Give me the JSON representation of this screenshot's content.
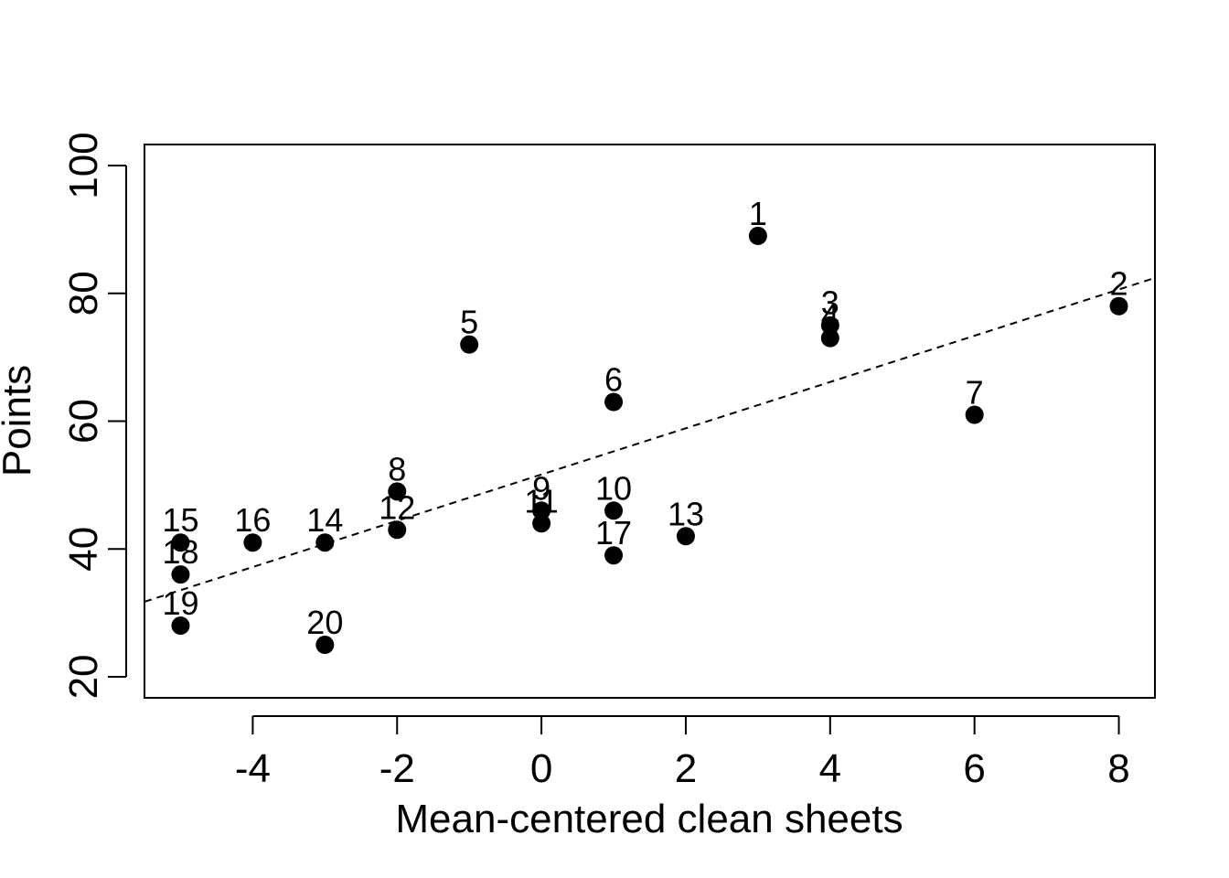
{
  "chart_data": {
    "type": "scatter",
    "title": "",
    "xlabel": "Mean-centered clean sheets",
    "ylabel": "Points",
    "xlim": [
      -5.5,
      8.5
    ],
    "ylim": [
      16.7,
      103.3
    ],
    "x_ticks": [
      -4,
      -2,
      0,
      2,
      4,
      6,
      8
    ],
    "x_tick_labels": [
      "-4",
      "-2",
      "0",
      "2",
      "4",
      "6",
      "8"
    ],
    "y_ticks": [
      20,
      40,
      60,
      80,
      100
    ],
    "y_tick_labels": [
      "20",
      "40",
      "60",
      "80",
      "100"
    ],
    "grid": false,
    "legend": "none",
    "points": [
      {
        "label": "1",
        "x": 3,
        "y": 89
      },
      {
        "label": "2",
        "x": 8,
        "y": 78
      },
      {
        "label": "3",
        "x": 4,
        "y": 75
      },
      {
        "label": "4",
        "x": 4,
        "y": 73
      },
      {
        "label": "5",
        "x": -1,
        "y": 72
      },
      {
        "label": "6",
        "x": 1,
        "y": 63
      },
      {
        "label": "7",
        "x": 6,
        "y": 61
      },
      {
        "label": "8",
        "x": -2,
        "y": 49
      },
      {
        "label": "9",
        "x": 0,
        "y": 46
      },
      {
        "label": "10",
        "x": 1,
        "y": 46
      },
      {
        "label": "11",
        "x": 0,
        "y": 44
      },
      {
        "label": "12",
        "x": -2,
        "y": 43
      },
      {
        "label": "13",
        "x": 2,
        "y": 42
      },
      {
        "label": "14",
        "x": -3,
        "y": 41
      },
      {
        "label": "15",
        "x": -5,
        "y": 41
      },
      {
        "label": "16",
        "x": -4,
        "y": 41
      },
      {
        "label": "17",
        "x": 1,
        "y": 39
      },
      {
        "label": "18",
        "x": -5,
        "y": 36
      },
      {
        "label": "19",
        "x": -5,
        "y": 28
      },
      {
        "label": "20",
        "x": -3,
        "y": 25
      }
    ],
    "fit_line": {
      "style": "dashed",
      "intercept": 51.65,
      "slope": 3.62
    }
  }
}
